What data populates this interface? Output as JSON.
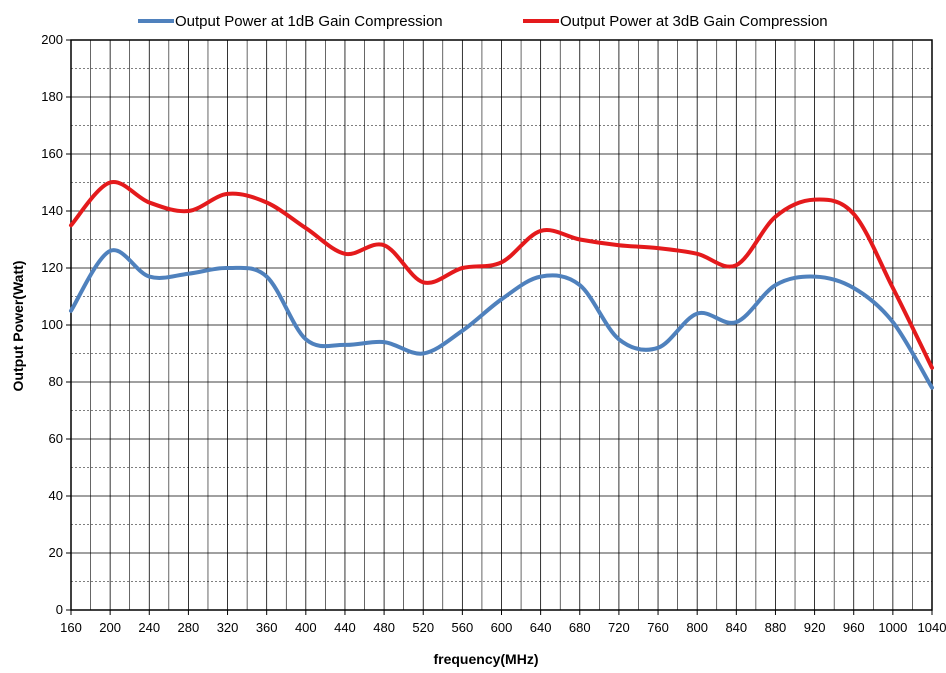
{
  "chart_data": {
    "type": "line",
    "title": "",
    "xlabel": "frequency(MHz)",
    "ylabel": "Output Power(Watt)",
    "xlim": [
      160,
      1040
    ],
    "ylim": [
      0,
      200
    ],
    "x_ticks": [
      "160",
      "200",
      "240",
      "280",
      "320",
      "360",
      "400",
      "440",
      "480",
      "520",
      "560",
      "600",
      "640",
      "680",
      "720",
      "760",
      "800",
      "840",
      "880",
      "920",
      "960",
      "1000",
      "1040"
    ],
    "y_ticks": [
      "0",
      "20",
      "40",
      "60",
      "80",
      "100",
      "120",
      "140",
      "160",
      "180",
      "200"
    ],
    "grid": true,
    "legend_position": "top",
    "x": [
      160,
      200,
      240,
      280,
      320,
      360,
      400,
      440,
      480,
      520,
      560,
      600,
      640,
      680,
      720,
      760,
      800,
      840,
      880,
      920,
      960,
      1000,
      1040
    ],
    "series": [
      {
        "name": "Output Power at 1dB Gain Compression",
        "color": "#4f81bd",
        "values": [
          105,
          126,
          117,
          118,
          120,
          117,
          95,
          93,
          94,
          90,
          98,
          109,
          117,
          114,
          95,
          92,
          104,
          101,
          114,
          117,
          113,
          101,
          78
        ]
      },
      {
        "name": "Output Power at 3dB Gain Compression",
        "color": "#e41a1c",
        "values": [
          135,
          150,
          143,
          140,
          146,
          143,
          134,
          125,
          128,
          115,
          120,
          122,
          133,
          130,
          128,
          127,
          125,
          121,
          138,
          144,
          139,
          113,
          85
        ]
      }
    ]
  }
}
